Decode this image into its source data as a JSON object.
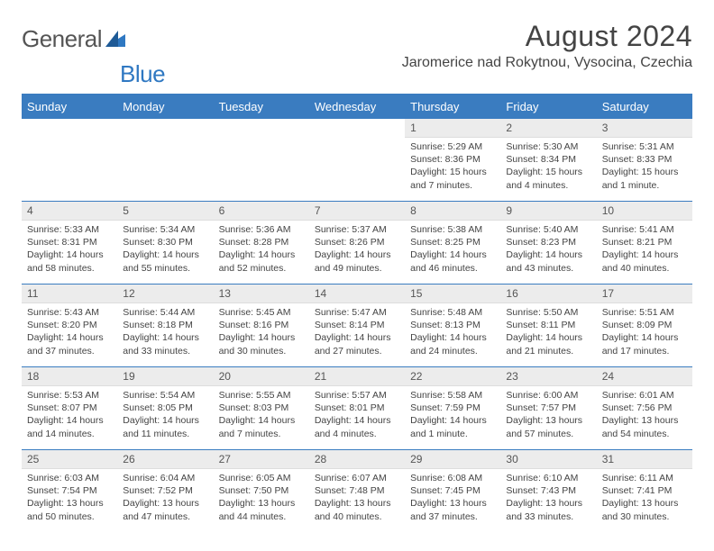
{
  "logo": {
    "part1": "General",
    "part2": "Blue"
  },
  "header": {
    "month_title": "August 2024",
    "location": "Jaromerice nad Rokytnou, Vysocina, Czechia"
  },
  "colors": {
    "accent": "#3a7cc0",
    "daynum_bg": "#ececec",
    "text": "#444444",
    "background": "#ffffff"
  },
  "days_of_week": [
    "Sunday",
    "Monday",
    "Tuesday",
    "Wednesday",
    "Thursday",
    "Friday",
    "Saturday"
  ],
  "weeks": [
    [
      {
        "blank": true
      },
      {
        "blank": true
      },
      {
        "blank": true
      },
      {
        "blank": true
      },
      {
        "n": "1",
        "sunrise": "5:29 AM",
        "sunset": "8:36 PM",
        "daylight": "15 hours and 7 minutes."
      },
      {
        "n": "2",
        "sunrise": "5:30 AM",
        "sunset": "8:34 PM",
        "daylight": "15 hours and 4 minutes."
      },
      {
        "n": "3",
        "sunrise": "5:31 AM",
        "sunset": "8:33 PM",
        "daylight": "15 hours and 1 minute."
      }
    ],
    [
      {
        "n": "4",
        "sunrise": "5:33 AM",
        "sunset": "8:31 PM",
        "daylight": "14 hours and 58 minutes."
      },
      {
        "n": "5",
        "sunrise": "5:34 AM",
        "sunset": "8:30 PM",
        "daylight": "14 hours and 55 minutes."
      },
      {
        "n": "6",
        "sunrise": "5:36 AM",
        "sunset": "8:28 PM",
        "daylight": "14 hours and 52 minutes."
      },
      {
        "n": "7",
        "sunrise": "5:37 AM",
        "sunset": "8:26 PM",
        "daylight": "14 hours and 49 minutes."
      },
      {
        "n": "8",
        "sunrise": "5:38 AM",
        "sunset": "8:25 PM",
        "daylight": "14 hours and 46 minutes."
      },
      {
        "n": "9",
        "sunrise": "5:40 AM",
        "sunset": "8:23 PM",
        "daylight": "14 hours and 43 minutes."
      },
      {
        "n": "10",
        "sunrise": "5:41 AM",
        "sunset": "8:21 PM",
        "daylight": "14 hours and 40 minutes."
      }
    ],
    [
      {
        "n": "11",
        "sunrise": "5:43 AM",
        "sunset": "8:20 PM",
        "daylight": "14 hours and 37 minutes."
      },
      {
        "n": "12",
        "sunrise": "5:44 AM",
        "sunset": "8:18 PM",
        "daylight": "14 hours and 33 minutes."
      },
      {
        "n": "13",
        "sunrise": "5:45 AM",
        "sunset": "8:16 PM",
        "daylight": "14 hours and 30 minutes."
      },
      {
        "n": "14",
        "sunrise": "5:47 AM",
        "sunset": "8:14 PM",
        "daylight": "14 hours and 27 minutes."
      },
      {
        "n": "15",
        "sunrise": "5:48 AM",
        "sunset": "8:13 PM",
        "daylight": "14 hours and 24 minutes."
      },
      {
        "n": "16",
        "sunrise": "5:50 AM",
        "sunset": "8:11 PM",
        "daylight": "14 hours and 21 minutes."
      },
      {
        "n": "17",
        "sunrise": "5:51 AM",
        "sunset": "8:09 PM",
        "daylight": "14 hours and 17 minutes."
      }
    ],
    [
      {
        "n": "18",
        "sunrise": "5:53 AM",
        "sunset": "8:07 PM",
        "daylight": "14 hours and 14 minutes."
      },
      {
        "n": "19",
        "sunrise": "5:54 AM",
        "sunset": "8:05 PM",
        "daylight": "14 hours and 11 minutes."
      },
      {
        "n": "20",
        "sunrise": "5:55 AM",
        "sunset": "8:03 PM",
        "daylight": "14 hours and 7 minutes."
      },
      {
        "n": "21",
        "sunrise": "5:57 AM",
        "sunset": "8:01 PM",
        "daylight": "14 hours and 4 minutes."
      },
      {
        "n": "22",
        "sunrise": "5:58 AM",
        "sunset": "7:59 PM",
        "daylight": "14 hours and 1 minute."
      },
      {
        "n": "23",
        "sunrise": "6:00 AM",
        "sunset": "7:57 PM",
        "daylight": "13 hours and 57 minutes."
      },
      {
        "n": "24",
        "sunrise": "6:01 AM",
        "sunset": "7:56 PM",
        "daylight": "13 hours and 54 minutes."
      }
    ],
    [
      {
        "n": "25",
        "sunrise": "6:03 AM",
        "sunset": "7:54 PM",
        "daylight": "13 hours and 50 minutes."
      },
      {
        "n": "26",
        "sunrise": "6:04 AM",
        "sunset": "7:52 PM",
        "daylight": "13 hours and 47 minutes."
      },
      {
        "n": "27",
        "sunrise": "6:05 AM",
        "sunset": "7:50 PM",
        "daylight": "13 hours and 44 minutes."
      },
      {
        "n": "28",
        "sunrise": "6:07 AM",
        "sunset": "7:48 PM",
        "daylight": "13 hours and 40 minutes."
      },
      {
        "n": "29",
        "sunrise": "6:08 AM",
        "sunset": "7:45 PM",
        "daylight": "13 hours and 37 minutes."
      },
      {
        "n": "30",
        "sunrise": "6:10 AM",
        "sunset": "7:43 PM",
        "daylight": "13 hours and 33 minutes."
      },
      {
        "n": "31",
        "sunrise": "6:11 AM",
        "sunset": "7:41 PM",
        "daylight": "13 hours and 30 minutes."
      }
    ]
  ],
  "labels": {
    "sunrise": "Sunrise:",
    "sunset": "Sunset:",
    "daylight": "Daylight:"
  }
}
